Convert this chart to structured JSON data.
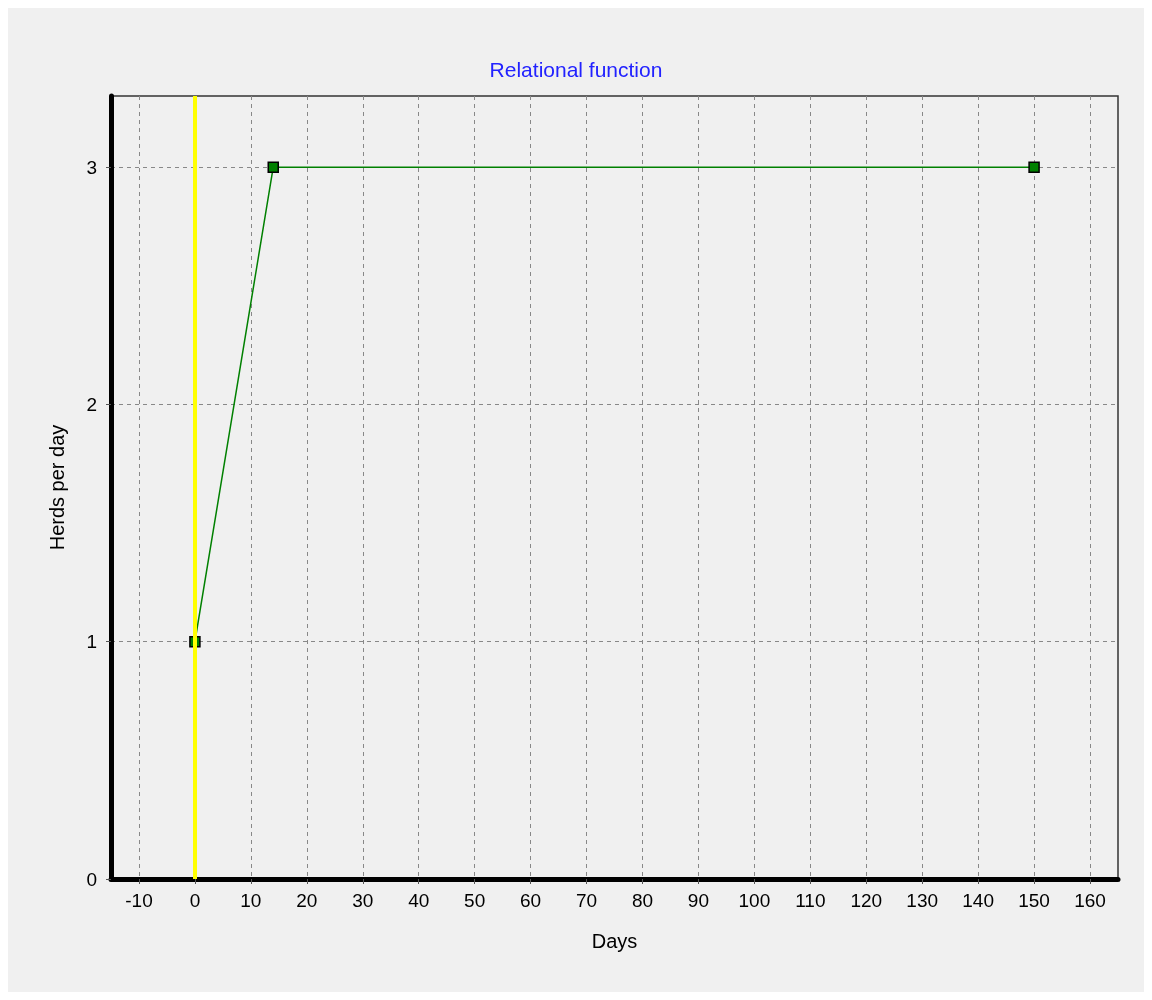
{
  "chart_data": {
    "type": "line",
    "title": "Relational function",
    "xlabel": "Days",
    "ylabel": "Herds per day",
    "x": [
      0,
      14,
      150
    ],
    "series": [
      {
        "color": "#008000",
        "values": [
          1,
          3,
          3
        ]
      }
    ],
    "xlim": [
      -15,
      165
    ],
    "xticks": [
      -10,
      0,
      10,
      20,
      30,
      40,
      50,
      60,
      70,
      80,
      90,
      100,
      110,
      120,
      130,
      140,
      150,
      160
    ],
    "ylim": [
      0,
      3.3
    ],
    "yticks": [
      0,
      1,
      2,
      3
    ],
    "grid": true,
    "marker": "square",
    "line_style": "solid",
    "ref_lines": [
      {
        "axis": "x",
        "value": 0,
        "label": null,
        "color": "#ffff00"
      }
    ]
  }
}
